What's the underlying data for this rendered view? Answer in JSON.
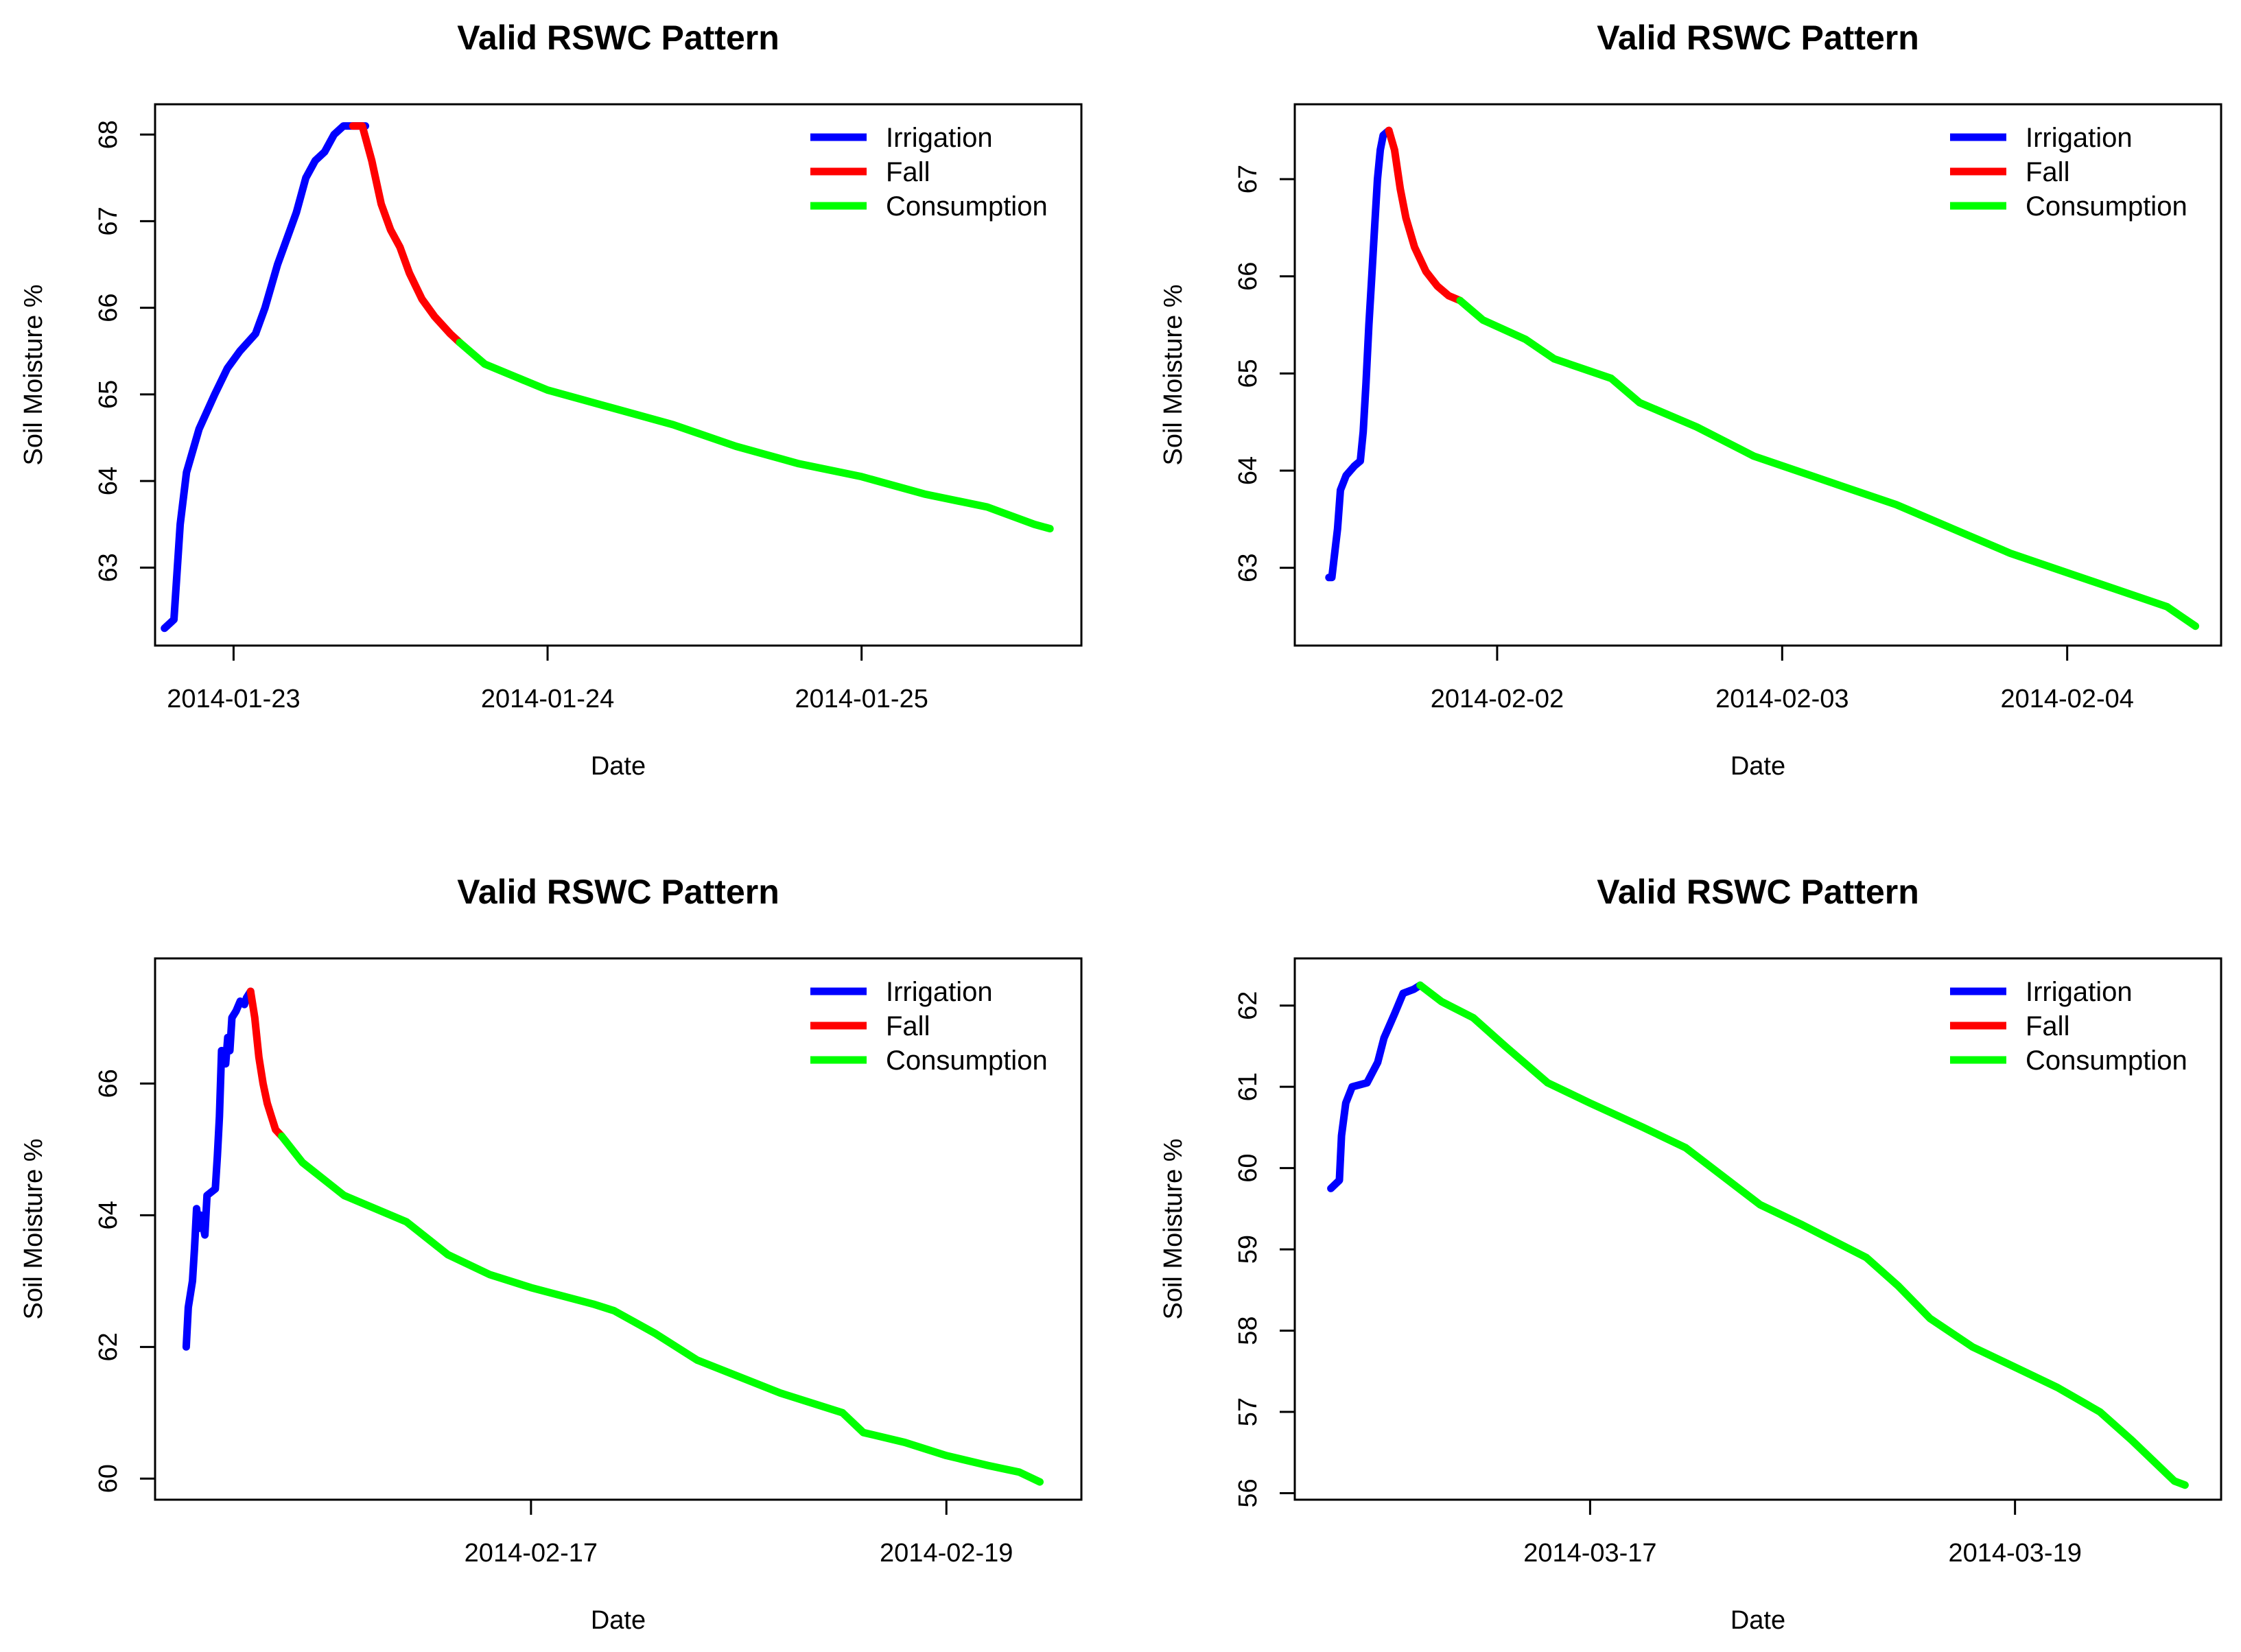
{
  "colors": {
    "irrigation": "#0000ff",
    "fall": "#ff0000",
    "consumption": "#00ff00"
  },
  "chart_data": [
    {
      "type": "line",
      "title": "Valid RSWC Pattern",
      "xlabel": "Date",
      "ylabel": "Soil Moisture %",
      "xlim": [
        -0.25,
        2.7
      ],
      "ylim": [
        62.1,
        68.35
      ],
      "xticks": [
        {
          "v": 0,
          "label": "2014-01-23"
        },
        {
          "v": 1,
          "label": "2014-01-24"
        },
        {
          "v": 2,
          "label": "2014-01-25"
        }
      ],
      "yticks": [
        63,
        64,
        65,
        66,
        67,
        68
      ],
      "legend": {
        "position": "top-right",
        "labels": [
          "Irrigation",
          "Fall",
          "Consumption"
        ]
      },
      "series": [
        {
          "name": "Irrigation",
          "color": "irrigation",
          "points": [
            [
              -0.22,
              62.3
            ],
            [
              -0.19,
              62.4
            ],
            [
              -0.17,
              63.5
            ],
            [
              -0.15,
              64.1
            ],
            [
              -0.11,
              64.6
            ],
            [
              -0.06,
              65.0
            ],
            [
              -0.02,
              65.3
            ],
            [
              0.02,
              65.5
            ],
            [
              0.07,
              65.7
            ],
            [
              0.1,
              66.0
            ],
            [
              0.14,
              66.5
            ],
            [
              0.18,
              66.9
            ],
            [
              0.2,
              67.1
            ],
            [
              0.23,
              67.5
            ],
            [
              0.26,
              67.7
            ],
            [
              0.29,
              67.8
            ],
            [
              0.32,
              68.0
            ],
            [
              0.35,
              68.1
            ],
            [
              0.38,
              68.1
            ],
            [
              0.42,
              68.1
            ]
          ]
        },
        {
          "name": "Fall",
          "color": "fall",
          "points": [
            [
              0.38,
              68.1
            ],
            [
              0.41,
              68.1
            ],
            [
              0.44,
              67.7
            ],
            [
              0.47,
              67.2
            ],
            [
              0.5,
              66.9
            ],
            [
              0.53,
              66.7
            ],
            [
              0.56,
              66.4
            ],
            [
              0.6,
              66.1
            ],
            [
              0.64,
              65.9
            ],
            [
              0.69,
              65.7
            ],
            [
              0.72,
              65.6
            ]
          ]
        },
        {
          "name": "Consumption",
          "color": "consumption",
          "points": [
            [
              0.72,
              65.6
            ],
            [
              0.8,
              65.35
            ],
            [
              0.9,
              65.2
            ],
            [
              1.0,
              65.05
            ],
            [
              1.2,
              64.85
            ],
            [
              1.4,
              64.65
            ],
            [
              1.6,
              64.4
            ],
            [
              1.8,
              64.2
            ],
            [
              2.0,
              64.05
            ],
            [
              2.2,
              63.85
            ],
            [
              2.4,
              63.7
            ],
            [
              2.55,
              63.5
            ],
            [
              2.6,
              63.45
            ]
          ]
        }
      ]
    },
    {
      "type": "line",
      "title": "Valid RSWC Pattern",
      "xlabel": "Date",
      "ylabel": "Soil Moisture %",
      "xlim": [
        -0.71,
        2.54
      ],
      "ylim": [
        62.2,
        67.77
      ],
      "xticks": [
        {
          "v": 0,
          "label": "2014-02-02"
        },
        {
          "v": 1,
          "label": "2014-02-03"
        },
        {
          "v": 2,
          "label": "2014-02-04"
        }
      ],
      "yticks": [
        63,
        64,
        65,
        66,
        67
      ],
      "legend": {
        "position": "top-right",
        "labels": [
          "Irrigation",
          "Fall",
          "Consumption"
        ]
      },
      "series": [
        {
          "name": "Irrigation",
          "color": "irrigation",
          "points": [
            [
              -0.59,
              62.9
            ],
            [
              -0.58,
              62.9
            ],
            [
              -0.56,
              63.4
            ],
            [
              -0.55,
              63.8
            ],
            [
              -0.53,
              63.95
            ],
            [
              -0.5,
              64.05
            ],
            [
              -0.48,
              64.1
            ],
            [
              -0.47,
              64.4
            ],
            [
              -0.46,
              64.9
            ],
            [
              -0.45,
              65.5
            ],
            [
              -0.44,
              66.0
            ],
            [
              -0.43,
              66.5
            ],
            [
              -0.42,
              67.0
            ],
            [
              -0.41,
              67.3
            ],
            [
              -0.4,
              67.45
            ],
            [
              -0.38,
              67.5
            ]
          ]
        },
        {
          "name": "Fall",
          "color": "fall",
          "points": [
            [
              -0.38,
              67.5
            ],
            [
              -0.36,
              67.3
            ],
            [
              -0.34,
              66.9
            ],
            [
              -0.32,
              66.6
            ],
            [
              -0.29,
              66.3
            ],
            [
              -0.25,
              66.05
            ],
            [
              -0.21,
              65.9
            ],
            [
              -0.17,
              65.8
            ],
            [
              -0.13,
              65.75
            ]
          ]
        },
        {
          "name": "Consumption",
          "color": "consumption",
          "points": [
            [
              -0.13,
              65.75
            ],
            [
              -0.05,
              65.55
            ],
            [
              0.1,
              65.35
            ],
            [
              0.2,
              65.15
            ],
            [
              0.4,
              64.95
            ],
            [
              0.5,
              64.7
            ],
            [
              0.7,
              64.45
            ],
            [
              0.9,
              64.15
            ],
            [
              1.1,
              63.95
            ],
            [
              1.2,
              63.85
            ],
            [
              1.4,
              63.65
            ],
            [
              1.6,
              63.4
            ],
            [
              1.8,
              63.15
            ],
            [
              2.0,
              62.95
            ],
            [
              2.2,
              62.75
            ],
            [
              2.35,
              62.6
            ],
            [
              2.4,
              62.5
            ],
            [
              2.45,
              62.4
            ]
          ]
        }
      ]
    },
    {
      "type": "line",
      "title": "Valid RSWC Pattern",
      "xlabel": "Date",
      "ylabel": "Soil Moisture %",
      "xlim": [
        -1.81,
        2.65
      ],
      "ylim": [
        59.68,
        67.9
      ],
      "xticks": [
        {
          "v": 0,
          "label": "2014-02-17"
        },
        {
          "v": 2,
          "label": "2014-02-19"
        }
      ],
      "yticks": [
        60,
        62,
        64,
        66
      ],
      "legend": {
        "position": "top-right",
        "labels": [
          "Irrigation",
          "Fall",
          "Consumption"
        ]
      },
      "series": [
        {
          "name": "Irrigation",
          "color": "irrigation",
          "points": [
            [
              -1.66,
              62.0
            ],
            [
              -1.65,
              62.6
            ],
            [
              -1.63,
              63.0
            ],
            [
              -1.62,
              63.5
            ],
            [
              -1.61,
              64.1
            ],
            [
              -1.6,
              63.8
            ],
            [
              -1.59,
              64.0
            ],
            [
              -1.57,
              63.7
            ],
            [
              -1.56,
              64.3
            ],
            [
              -1.52,
              64.4
            ],
            [
              -1.51,
              64.9
            ],
            [
              -1.5,
              65.5
            ],
            [
              -1.49,
              66.5
            ],
            [
              -1.47,
              66.3
            ],
            [
              -1.46,
              66.7
            ],
            [
              -1.45,
              66.5
            ],
            [
              -1.44,
              67.0
            ],
            [
              -1.42,
              67.1
            ],
            [
              -1.4,
              67.25
            ],
            [
              -1.38,
              67.2
            ],
            [
              -1.37,
              67.3
            ],
            [
              -1.35,
              67.4
            ]
          ]
        },
        {
          "name": "Fall",
          "color": "fall",
          "points": [
            [
              -1.35,
              67.4
            ],
            [
              -1.33,
              67.0
            ],
            [
              -1.31,
              66.4
            ],
            [
              -1.29,
              66.0
            ],
            [
              -1.27,
              65.7
            ],
            [
              -1.25,
              65.5
            ],
            [
              -1.23,
              65.3
            ],
            [
              -1.2,
              65.2
            ]
          ]
        },
        {
          "name": "Consumption",
          "color": "consumption",
          "points": [
            [
              -1.2,
              65.2
            ],
            [
              -1.1,
              64.8
            ],
            [
              -0.9,
              64.3
            ],
            [
              -0.6,
              63.9
            ],
            [
              -0.4,
              63.4
            ],
            [
              -0.2,
              63.1
            ],
            [
              0.0,
              62.9
            ],
            [
              0.3,
              62.65
            ],
            [
              0.4,
              62.55
            ],
            [
              0.6,
              62.2
            ],
            [
              0.8,
              61.8
            ],
            [
              1.0,
              61.55
            ],
            [
              1.2,
              61.3
            ],
            [
              1.5,
              61.0
            ],
            [
              1.6,
              60.7
            ],
            [
              1.8,
              60.55
            ],
            [
              2.0,
              60.35
            ],
            [
              2.2,
              60.2
            ],
            [
              2.35,
              60.1
            ],
            [
              2.45,
              59.95
            ]
          ]
        }
      ]
    },
    {
      "type": "line",
      "title": "Valid RSWC Pattern",
      "xlabel": "Date",
      "ylabel": "Soil Moisture %",
      "xlim": [
        -1.39,
        2.97
      ],
      "ylim": [
        55.92,
        62.58
      ],
      "xticks": [
        {
          "v": 0,
          "label": "2014-03-17"
        },
        {
          "v": 2,
          "label": "2014-03-19"
        }
      ],
      "yticks": [
        56,
        57,
        58,
        59,
        60,
        61,
        62
      ],
      "legend": {
        "position": "top-right",
        "labels": [
          "Irrigation",
          "Fall",
          "Consumption"
        ]
      },
      "series": [
        {
          "name": "Irrigation",
          "color": "irrigation",
          "points": [
            [
              -1.22,
              59.75
            ],
            [
              -1.18,
              59.85
            ],
            [
              -1.17,
              60.4
            ],
            [
              -1.15,
              60.8
            ],
            [
              -1.12,
              61.0
            ],
            [
              -1.05,
              61.05
            ],
            [
              -1.0,
              61.3
            ],
            [
              -0.97,
              61.6
            ],
            [
              -0.92,
              61.9
            ],
            [
              -0.88,
              62.15
            ],
            [
              -0.83,
              62.2
            ],
            [
              -0.8,
              62.25
            ]
          ]
        },
        {
          "name": "Fall",
          "color": "fall",
          "points": []
        },
        {
          "name": "Consumption",
          "color": "consumption",
          "points": [
            [
              -0.8,
              62.25
            ],
            [
              -0.7,
              62.05
            ],
            [
              -0.55,
              61.85
            ],
            [
              -0.4,
              61.5
            ],
            [
              -0.2,
              61.05
            ],
            [
              0.0,
              60.8
            ],
            [
              0.25,
              60.5
            ],
            [
              0.45,
              60.25
            ],
            [
              0.6,
              59.95
            ],
            [
              0.8,
              59.55
            ],
            [
              1.0,
              59.3
            ],
            [
              1.3,
              58.9
            ],
            [
              1.45,
              58.55
            ],
            [
              1.6,
              58.15
            ],
            [
              1.8,
              57.8
            ],
            [
              2.0,
              57.55
            ],
            [
              2.2,
              57.3
            ],
            [
              2.4,
              57.0
            ],
            [
              2.55,
              56.65
            ],
            [
              2.75,
              56.15
            ],
            [
              2.8,
              56.1
            ]
          ]
        }
      ]
    }
  ]
}
